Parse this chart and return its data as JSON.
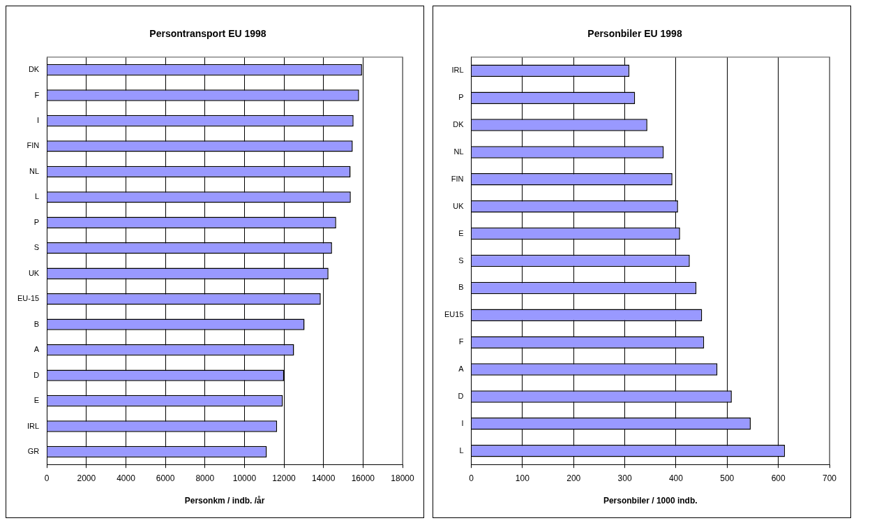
{
  "chart_data": [
    {
      "type": "bar",
      "orientation": "horizontal",
      "title": "Persontransport EU 1998",
      "xlabel": "Personkm / indb. /år",
      "categories": [
        "DK",
        "F",
        "I",
        "FIN",
        "NL",
        "L",
        "P",
        "S",
        "UK",
        "EU-15",
        "B",
        "A",
        "D",
        "E",
        "IRL",
        "GR"
      ],
      "values": [
        15950,
        15800,
        15520,
        15480,
        15370,
        15380,
        14640,
        14430,
        14250,
        13860,
        13040,
        12510,
        12000,
        11940,
        11650,
        11130
      ],
      "color": "#9999ff",
      "xlim": [
        0,
        18000
      ],
      "xticks": [
        0,
        2000,
        4000,
        6000,
        8000,
        10000,
        12000,
        14000,
        16000,
        18000
      ],
      "grid": "x"
    },
    {
      "type": "bar",
      "orientation": "horizontal",
      "title": "Personbiler EU 1998",
      "xlabel": "Personbiler / 1000 indb.",
      "categories": [
        "IRL",
        "P",
        "DK",
        "NL",
        "FIN",
        "UK",
        "E",
        "S",
        "B",
        "EU15",
        "F",
        "A",
        "D",
        "I",
        "L"
      ],
      "values": [
        309,
        320,
        344,
        376,
        393,
        404,
        408,
        427,
        440,
        451,
        455,
        481,
        509,
        546,
        613
      ],
      "color": "#9999ff",
      "xlim": [
        0,
        700
      ],
      "xticks": [
        0,
        100,
        200,
        300,
        400,
        500,
        600,
        700
      ],
      "grid": "x"
    }
  ]
}
